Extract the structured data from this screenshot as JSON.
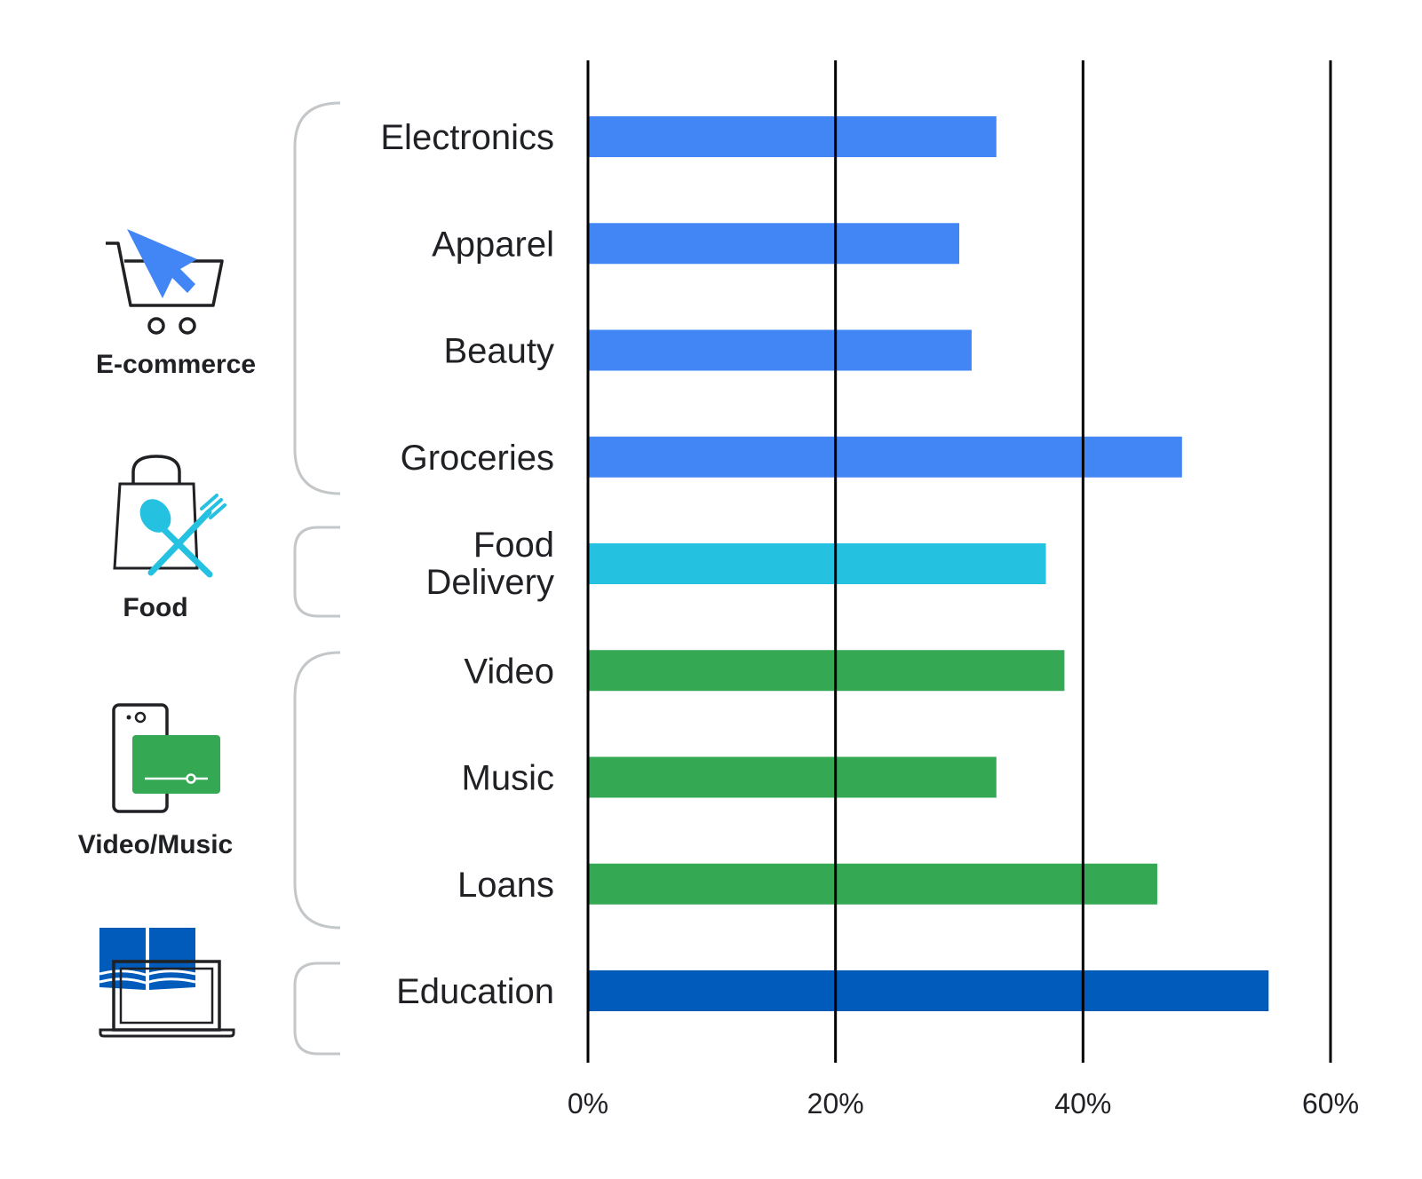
{
  "chart_data": {
    "type": "bar",
    "orientation": "horizontal",
    "categories": [
      "Electronics",
      "Apparel",
      "Beauty",
      "Groceries",
      "Food Delivery",
      "Video",
      "Music",
      "Loans",
      "Education"
    ],
    "values": [
      33,
      30,
      31,
      48,
      37,
      38.5,
      33,
      46,
      55
    ],
    "bar_colors": [
      "#4285f4",
      "#4285f4",
      "#4285f4",
      "#4285f4",
      "#24c1e0",
      "#34a853",
      "#34a853",
      "#34a853",
      "#005bbb"
    ],
    "xlim": [
      0,
      60
    ],
    "xticks": [
      0,
      20,
      40,
      60
    ],
    "tick_labels": [
      "0%",
      "20%",
      "40%",
      "60%"
    ],
    "grid": true,
    "groups": [
      {
        "label": "E-commerce",
        "icon": "shopping-cart-icon",
        "color": "#4285f4"
      },
      {
        "label": "Food",
        "icon": "food-bag-icon",
        "color": "#24c1e0"
      },
      {
        "label": "Video/Music",
        "icon": "phone-video-icon",
        "color": "#34a853"
      },
      {
        "label": "",
        "icon": "laptop-book-icon",
        "color": "#005bbb"
      }
    ]
  }
}
